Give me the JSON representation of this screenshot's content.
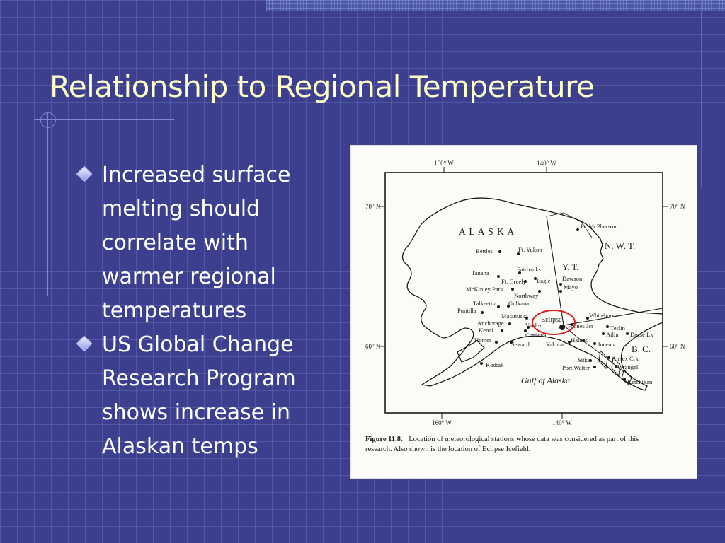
{
  "slide": {
    "title": "Relationship to Regional Temperature",
    "bullets": [
      {
        "lines": [
          "Increased surface",
          "melting should",
          "correlate with",
          "warmer regional",
          "temperatures"
        ]
      },
      {
        "lines": [
          "US Global Change",
          "Research Program",
          "shows increase in",
          "Alaskan temps"
        ]
      }
    ]
  },
  "figure": {
    "longitudes": {
      "w160": "160° W",
      "w140": "140° W"
    },
    "latitudes": {
      "n70": "70° N",
      "n60": "60° N"
    },
    "regions": {
      "alaska": "A L A S K A",
      "yt": "Y. T.",
      "nwt": "N. W. T.",
      "bc": "B. C.",
      "gulf": "Gulf of Alaska"
    },
    "stations": {
      "ft_mcpherson": "Ft. McPherson",
      "bettles": "Bettles",
      "ft_yukon": "Ft. Yukon",
      "fairbanks": "Fairbanks",
      "tanana": "Tanana",
      "ft_greely": "Ft. Greely",
      "eagle": "Eagle",
      "dawson": "Dawson",
      "mayo": "Mayo",
      "mckinley_park": "McKinley Park",
      "northway": "Northway",
      "talkeetna": "Talkeetna",
      "gulkana": "Gulkana",
      "puntilla": "Puntilla",
      "matanuska": "Matanuska",
      "anchorage": "Anchorage",
      "valdez": "Valdez",
      "kenai": "Kenai",
      "cordova": "Cordova",
      "homer": "Homer",
      "seward": "Seward",
      "yakutat": "Yakutat",
      "haines": "Haines",
      "haines_jct": "Haines Jct",
      "whitehorse": "Whitehorse",
      "teslin": "Teslin",
      "atlin": "Atlin",
      "dease_lk": "Dease Lk",
      "juneau": "Juneau",
      "annex_crk": "Annex Crk",
      "sitka": "Sitka",
      "wrangell": "Wrangell",
      "port_walter": "Port Walter",
      "ketchikan": "Ketchikan",
      "kodiak": "Kodiak"
    },
    "highlight": "Eclipse",
    "highlight_color": "#d42020",
    "caption_label": "Figure 11.8.",
    "caption_line1": "Location of meteorological stations whose data was considered as part of this",
    "caption_line2": "research.  Also shown is the location of Eclipse Icefield."
  }
}
